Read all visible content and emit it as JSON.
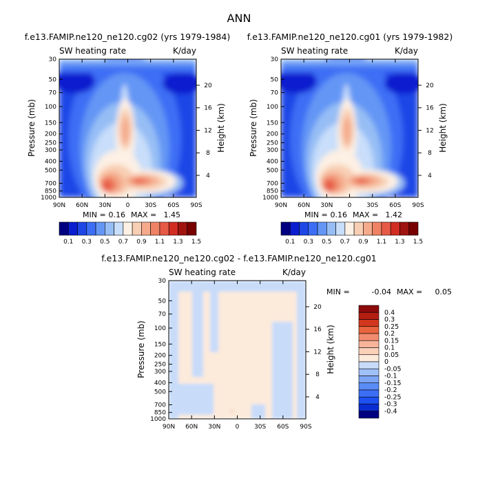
{
  "figure": {
    "title": "ANN"
  },
  "colors": {
    "abs_scale": [
      "#000080",
      "#0a1ecf",
      "#1e46e6",
      "#3c6ef5",
      "#6496f5",
      "#96bef5",
      "#c8defa",
      "#fdf0e4",
      "#f8cfb4",
      "#f5aa8c",
      "#ef8264",
      "#e65a46",
      "#d22d23",
      "#a0140f",
      "#780000"
    ],
    "diff_scale": [
      "#000080",
      "#0a2dd2",
      "#1e50ef",
      "#3c6ef5",
      "#5a8cf5",
      "#7ca6f5",
      "#a0c0f8",
      "#c8dcfa",
      "#fceadb",
      "#fbd1b8",
      "#f8b49a",
      "#f28c6e",
      "#e8643f",
      "#d2371e",
      "#b41e12",
      "#8c0a0a"
    ]
  },
  "chart_data": [
    {
      "type": "heatmap",
      "title": "f.e13.FAMIP.ne120_ne120.cg02 (yrs 1979-1984)",
      "left_label": "SW heating rate",
      "right_label": "K/day",
      "xlabel": "",
      "ylabel": "Pressure (mb)",
      "ylabel_right": "Height (km)",
      "x_ticks": [
        "90N",
        "60N",
        "30N",
        "0",
        "30S",
        "60S",
        "90S"
      ],
      "y_ticks": [
        "30",
        "50",
        "70",
        "100",
        "150",
        "200",
        "250",
        "300",
        "400",
        "500",
        "700",
        "850",
        "1000"
      ],
      "y_ticks_right": [
        "20",
        "16",
        "12",
        "8",
        "4"
      ],
      "stats": {
        "min_label": "MIN =",
        "min": "0.16",
        "max_label": "MAX =",
        "max": "1.45"
      },
      "colorbar_labels": [
        "0.1",
        "0.3",
        "0.5",
        "0.7",
        "0.9",
        "1.1",
        "1.3",
        "1.5"
      ],
      "colorbar_levels": [
        0.1,
        0.2,
        0.3,
        0.4,
        0.5,
        0.6,
        0.7,
        0.8,
        0.9,
        1.0,
        1.1,
        1.2,
        1.3,
        1.4,
        1.5
      ]
    },
    {
      "type": "heatmap",
      "title": "f.e13.FAMIP.ne120_ne120.cg01 (yrs 1979-1982)",
      "left_label": "SW heating rate",
      "right_label": "K/day",
      "xlabel": "",
      "ylabel": "Pressure (mb)",
      "ylabel_right": "Height (km)",
      "x_ticks": [
        "90N",
        "60N",
        "30N",
        "0",
        "30S",
        "60S",
        "90S"
      ],
      "y_ticks": [
        "30",
        "50",
        "70",
        "100",
        "150",
        "200",
        "250",
        "300",
        "400",
        "500",
        "700",
        "850",
        "1000"
      ],
      "y_ticks_right": [
        "20",
        "16",
        "12",
        "8",
        "4"
      ],
      "stats": {
        "min_label": "MIN =",
        "min": "0.16",
        "max_label": "MAX =",
        "max": "1.42"
      },
      "colorbar_labels": [
        "0.1",
        "0.3",
        "0.5",
        "0.7",
        "0.9",
        "1.1",
        "1.3",
        "1.5"
      ],
      "colorbar_levels": [
        0.1,
        0.2,
        0.3,
        0.4,
        0.5,
        0.6,
        0.7,
        0.8,
        0.9,
        1.0,
        1.1,
        1.2,
        1.3,
        1.4,
        1.5
      ]
    },
    {
      "type": "heatmap",
      "title": "f.e13.FAMIP.ne120_ne120.cg02 - f.e13.FAMIP.ne120_ne120.cg01",
      "left_label": "SW heating rate",
      "right_label": "K/day",
      "xlabel": "",
      "ylabel": "Pressure (mb)",
      "ylabel_right": "Height (km)",
      "x_ticks": [
        "90N",
        "60N",
        "30N",
        "0",
        "30S",
        "60S",
        "90S"
      ],
      "y_ticks": [
        "30",
        "50",
        "70",
        "100",
        "150",
        "200",
        "250",
        "300",
        "400",
        "500",
        "700",
        "850",
        "1000"
      ],
      "y_ticks_right": [
        "20",
        "16",
        "12",
        "8",
        "4"
      ],
      "stats": {
        "min_label": "MIN =",
        "min": "-0.04",
        "max_label": "MAX =",
        "max": "0.05"
      },
      "colorbar_labels": [
        "0.4",
        "0.3",
        "0.25",
        "0.2",
        "0.15",
        "0.1",
        "0.05",
        "0",
        "-0.05",
        "-0.1",
        "-0.15",
        "-0.2",
        "-0.25",
        "-0.3",
        "-0.4"
      ],
      "colorbar_levels": [
        -0.4,
        -0.3,
        -0.25,
        -0.2,
        -0.15,
        -0.1,
        -0.05,
        0,
        0.05,
        0.1,
        0.15,
        0.2,
        0.25,
        0.3,
        0.4
      ]
    }
  ]
}
